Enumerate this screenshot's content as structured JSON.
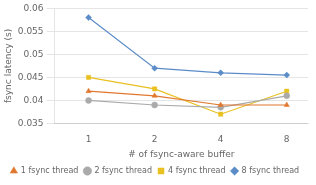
{
  "chart_data": {
    "type": "line",
    "xlabel": "# of fsync-aware buffer",
    "ylabel": "fsync latency (s)",
    "x": [
      1,
      2,
      4,
      8
    ],
    "series": [
      {
        "name": "1 fsync thread",
        "color": "#E07830",
        "marker": "triangle",
        "values": [
          0.042,
          0.041,
          0.039,
          0.039
        ]
      },
      {
        "name": "2 fsync thread",
        "color": "#AAAAAA",
        "marker": "circle",
        "values": [
          0.04,
          0.039,
          0.0385,
          0.041
        ]
      },
      {
        "name": "4 fsync thread",
        "color": "#E8C020",
        "marker": "square",
        "values": [
          0.045,
          0.0425,
          0.037,
          0.042
        ]
      },
      {
        "name": "8 fsync thread",
        "color": "#5B8CC8",
        "marker": "diamond",
        "values": [
          0.058,
          0.047,
          0.046,
          0.0455
        ]
      }
    ],
    "log": "x",
    "xlim": [
      0.7,
      10
    ],
    "xticks": [
      1,
      2,
      4,
      8
    ],
    "ylim": [
      0.035,
      0.06
    ],
    "yticks": [
      0.035,
      0.04,
      0.045,
      0.05,
      0.055,
      0.06
    ],
    "grid": "y",
    "legend": "bottom"
  }
}
